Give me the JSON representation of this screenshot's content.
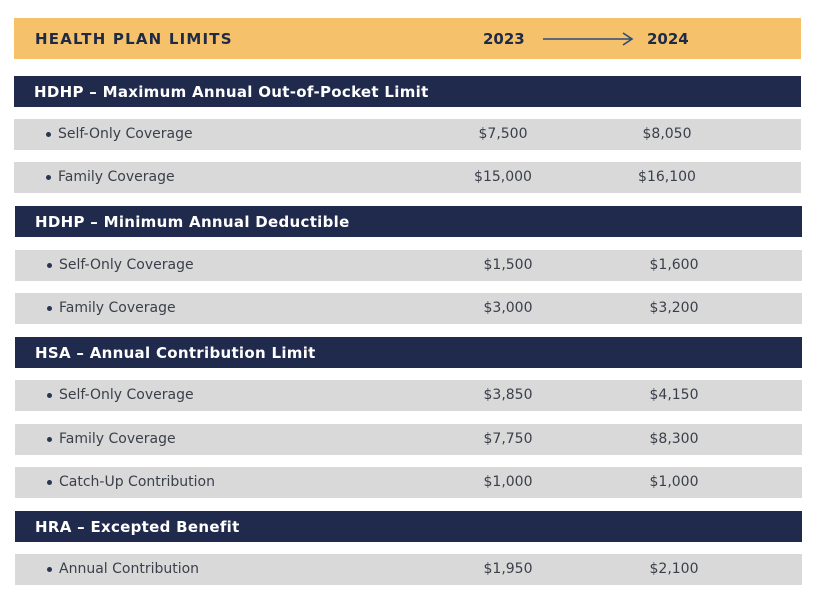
{
  "header": {
    "title": "HEALTH PLAN LIMITS",
    "year_from": "2023",
    "year_to": "2024",
    "arrow_icon": "right-arrow",
    "background_color": "#f5c26b"
  },
  "sections": [
    {
      "title": "HDHP – Maximum Annual Out-of-Pocket Limit",
      "rows": [
        {
          "label": "Self-Only Coverage",
          "v2023": "$7,500",
          "v2024": "$8,050"
        },
        {
          "label": "Family Coverage",
          "v2023": "$15,000",
          "v2024": "$16,100"
        }
      ]
    },
    {
      "title": "HDHP – Minimum Annual Deductible",
      "rows": [
        {
          "label": "Self-Only Coverage",
          "v2023": "$1,500",
          "v2024": "$1,600"
        },
        {
          "label": "Family Coverage",
          "v2023": "$3,000",
          "v2024": "$3,200"
        }
      ]
    },
    {
      "title": "HSA – Annual Contribution Limit",
      "rows": [
        {
          "label": "Self-Only Coverage",
          "v2023": "$3,850",
          "v2024": "$4,150"
        },
        {
          "label": "Family Coverage",
          "v2023": "$7,750",
          "v2024": "$8,300"
        },
        {
          "label": "Catch-Up Contribution",
          "v2023": "$1,000",
          "v2024": "$1,000"
        }
      ]
    },
    {
      "title": "HRA – Excepted Benefit",
      "rows": [
        {
          "label": "Annual Contribution",
          "v2023": "$1,950",
          "v2024": "$2,100"
        }
      ]
    }
  ],
  "colors": {
    "section_bar": "#1f2a4c",
    "row_bg": "#d9d9d9",
    "text_dark": "#1f2a44"
  }
}
